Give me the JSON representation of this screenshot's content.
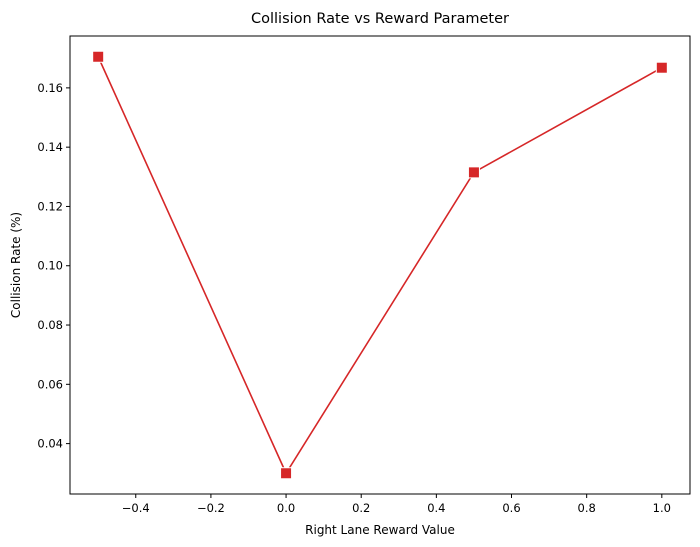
{
  "chart_data": {
    "type": "line",
    "title": "Collision Rate vs Reward Parameter",
    "xlabel": "Right Lane Reward Value",
    "ylabel": "Collision Rate (%)",
    "x": [
      -0.5,
      0.0,
      0.5,
      1.0
    ],
    "series": [
      {
        "values": [
          0.1705,
          0.03,
          0.1315,
          0.1668
        ],
        "color": "#d62728",
        "marker": "square"
      }
    ],
    "xlim": [
      -0.575,
      1.075
    ],
    "ylim": [
      0.023,
      0.1775
    ],
    "xticks": [
      {
        "value": -0.4,
        "label": "−0.4"
      },
      {
        "value": -0.2,
        "label": "−0.2"
      },
      {
        "value": 0.0,
        "label": "0.0"
      },
      {
        "value": 0.2,
        "label": "0.2"
      },
      {
        "value": 0.4,
        "label": "0.4"
      },
      {
        "value": 0.6,
        "label": "0.6"
      },
      {
        "value": 0.8,
        "label": "0.8"
      },
      {
        "value": 1.0,
        "label": "1.0"
      }
    ],
    "yticks": [
      {
        "value": 0.04,
        "label": "0.04"
      },
      {
        "value": 0.06,
        "label": "0.06"
      },
      {
        "value": 0.08,
        "label": "0.08"
      },
      {
        "value": 0.1,
        "label": "0.10"
      },
      {
        "value": 0.12,
        "label": "0.12"
      },
      {
        "value": 0.14,
        "label": "0.14"
      },
      {
        "value": 0.16,
        "label": "0.16"
      }
    ],
    "grid": false,
    "legend": "none"
  }
}
